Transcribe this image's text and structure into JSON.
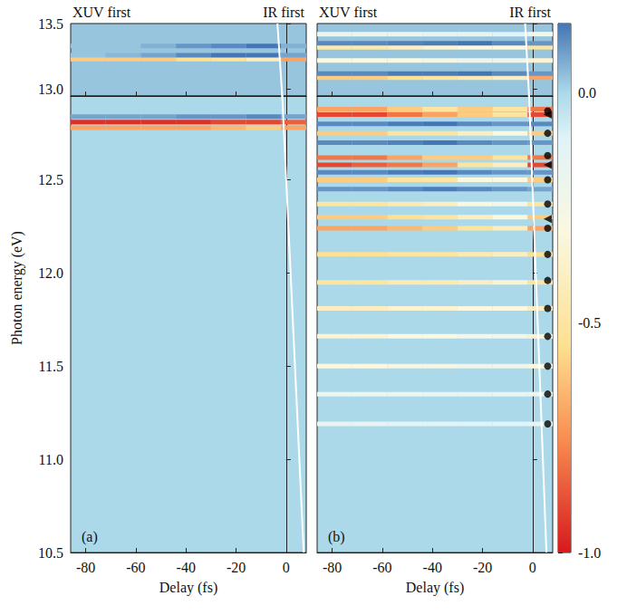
{
  "chart_data": {
    "type": "heatmap",
    "ylabel": "Photon energy (eV)",
    "colorbar": {
      "range": [
        -1.0,
        0.15
      ],
      "ticks": [
        {
          "value": 0,
          "label": "0.0"
        },
        {
          "value": -0.5,
          "label": "-0.5"
        },
        {
          "value": -1,
          "label": "-1.0"
        }
      ]
    },
    "panels": [
      {
        "letter": "(a)",
        "top_left": "XUV first",
        "top_right": "IR first",
        "xlabel": "Delay (fs)",
        "xlim": [
          -86,
          8
        ],
        "xticks": [
          -80,
          -60,
          -40,
          -20,
          0
        ],
        "delay_bins": [
          -86,
          -72,
          -58,
          -44,
          -30,
          -16,
          -2,
          8
        ],
        "sections": [
          {
            "ylim": [
              12.95,
              13.5
            ],
            "yticks": [
              {
                "value": 13,
                "label": "13.0"
              },
              {
                "value": 13.5,
                "label": "13.5"
              }
            ],
            "baseline": 0.03,
            "bands": [
              {
                "energy": 13.23,
                "values": [
                  -0.6,
                  -0.6,
                  -0.6,
                  -0.55,
                  -0.5,
                  -0.4,
                  -0.7
                ]
              },
              {
                "energy": 13.26,
                "values": [
                  0.03,
                  0.05,
                  0.08,
                  0.12,
                  0.15,
                  0.15,
                  0.08
                ]
              },
              {
                "energy": 13.33,
                "values": [
                  0.03,
                  0.03,
                  0.06,
                  0.1,
                  0.12,
                  0.15,
                  0.06
                ]
              }
            ]
          },
          {
            "ylim": [
              10.5,
              12.95
            ],
            "yticks": [
              {
                "value": 10.5,
                "label": "10.5"
              },
              {
                "value": 11,
                "label": "11.0"
              },
              {
                "value": 11.5,
                "label": "11.5"
              },
              {
                "value": 12,
                "label": "12.0"
              },
              {
                "value": 12.5,
                "label": "12.5"
              }
            ],
            "baseline": 0.0,
            "bands": [
              {
                "energy": 12.84,
                "values": [
                  0.08,
                  0.08,
                  0.08,
                  0.1,
                  0.1,
                  0.12,
                  0.08
                ]
              },
              {
                "energy": 12.81,
                "values": [
                  -0.95,
                  -0.95,
                  -0.95,
                  -0.95,
                  -0.9,
                  -0.9,
                  -0.85
                ]
              },
              {
                "energy": 12.78,
                "values": [
                  -0.7,
                  -0.7,
                  -0.7,
                  -0.7,
                  -0.65,
                  -0.6,
                  -0.7
                ]
              }
            ]
          }
        ],
        "ir_line": {
          "x": [
            -3.5,
            7
          ],
          "y": [
            13.5,
            10.5
          ]
        }
      },
      {
        "letter": "(b)",
        "top_left": "XUV first",
        "top_right": "IR first",
        "xlabel": "Delay (fs)",
        "xlim": [
          -86,
          8
        ],
        "xticks": [
          -80,
          -60,
          -40,
          -20,
          0
        ],
        "tick_labels": "x",
        "delay_bins": [
          -86,
          -72,
          -58,
          -44,
          -30,
          -16,
          -2,
          8
        ],
        "sections": [
          {
            "ylim": [
              12.95,
              13.5
            ],
            "yticks": [
              {
                "value": 13,
                "label": "13.0"
              },
              {
                "value": 13.5,
                "label": "13.5"
              }
            ],
            "baseline": 0.03,
            "bands": [
              {
                "energy": 13.09,
                "values": [
                  -0.6,
                  -0.6,
                  -0.55,
                  -0.5,
                  -0.45,
                  -0.4,
                  -0.7
                ]
              },
              {
                "energy": 13.12,
                "values": [
                  0.12,
                  0.12,
                  0.14,
                  0.14,
                  0.15,
                  0.12,
                  0.1
                ]
              },
              {
                "energy": 13.22,
                "values": [
                  -0.3,
                  -0.3,
                  -0.3,
                  -0.25,
                  -0.2,
                  -0.2,
                  -0.35
                ]
              },
              {
                "energy": 13.32,
                "values": [
                  -0.45,
                  -0.45,
                  -0.4,
                  -0.35,
                  -0.3,
                  -0.3,
                  -0.5
                ]
              },
              {
                "energy": 13.35,
                "values": [
                  0.12,
                  0.12,
                  0.13,
                  0.14,
                  0.15,
                  0.12,
                  0.1
                ]
              },
              {
                "energy": 13.42,
                "values": [
                  -0.2,
                  -0.2,
                  -0.2,
                  -0.15,
                  -0.15,
                  -0.1,
                  -0.25
                ]
              }
            ]
          },
          {
            "ylim": [
              10.5,
              12.95
            ],
            "yticks": [
              {
                "value": 10.5,
                "label": "10.5"
              },
              {
                "value": 11,
                "label": "11.0"
              },
              {
                "value": 11.5,
                "label": "11.5"
              },
              {
                "value": 12,
                "label": "12.0"
              },
              {
                "value": 12.5,
                "label": "12.5"
              }
            ],
            "baseline": 0.0,
            "bands": [
              {
                "energy": 12.88,
                "values": [
                  -0.7,
                  -0.7,
                  -0.6,
                  -0.5,
                  -0.6,
                  -0.5,
                  -0.8
                ]
              },
              {
                "energy": 12.85,
                "values": [
                  -0.9,
                  -0.9,
                  -0.8,
                  -0.7,
                  -0.6,
                  -0.5,
                  -0.9
                ]
              },
              {
                "energy": 12.8,
                "values": [
                  0.12,
                  0.12,
                  0.14,
                  0.15,
                  0.12,
                  0.1,
                  0.12
                ]
              },
              {
                "energy": 12.75,
                "values": [
                  -0.6,
                  -0.6,
                  -0.5,
                  -0.5,
                  -0.4,
                  -0.3,
                  -0.6
                ]
              },
              {
                "energy": 12.7,
                "values": [
                  0.12,
                  0.12,
                  0.13,
                  0.15,
                  0.12,
                  0.1,
                  0.1
                ]
              },
              {
                "energy": 12.62,
                "values": [
                  -0.8,
                  -0.8,
                  -0.7,
                  -0.6,
                  -0.6,
                  -0.5,
                  -0.8
                ]
              },
              {
                "energy": 12.58,
                "values": [
                  -0.9,
                  -0.85,
                  -0.8,
                  -0.7,
                  -0.5,
                  -0.4,
                  -0.9
                ]
              },
              {
                "energy": 12.54,
                "values": [
                  0.12,
                  0.12,
                  0.14,
                  0.15,
                  0.12,
                  0.1,
                  0.1
                ]
              },
              {
                "energy": 12.5,
                "values": [
                  -0.6,
                  -0.6,
                  -0.5,
                  -0.5,
                  -0.3,
                  -0.3,
                  -0.6
                ]
              },
              {
                "energy": 12.45,
                "values": [
                  0.1,
                  0.1,
                  0.12,
                  0.14,
                  0.12,
                  0.1,
                  0.08
                ]
              },
              {
                "energy": 12.37,
                "values": [
                  -0.5,
                  -0.5,
                  -0.45,
                  -0.4,
                  -0.3,
                  -0.25,
                  -0.5
                ]
              },
              {
                "energy": 12.3,
                "values": [
                  -0.6,
                  -0.6,
                  -0.55,
                  -0.5,
                  -0.4,
                  -0.3,
                  -0.6
                ]
              },
              {
                "energy": 12.24,
                "values": [
                  -0.7,
                  -0.7,
                  -0.65,
                  -0.6,
                  -0.5,
                  -0.4,
                  -0.7
                ]
              },
              {
                "energy": 12.1,
                "values": [
                  -0.55,
                  -0.55,
                  -0.5,
                  -0.5,
                  -0.45,
                  -0.4,
                  -0.55
                ]
              },
              {
                "energy": 11.95,
                "values": [
                  -0.5,
                  -0.5,
                  -0.45,
                  -0.45,
                  -0.4,
                  -0.35,
                  -0.5
                ]
              },
              {
                "energy": 11.81,
                "values": [
                  -0.4,
                  -0.4,
                  -0.35,
                  -0.35,
                  -0.3,
                  -0.3,
                  -0.4
                ]
              },
              {
                "energy": 11.66,
                "values": [
                  -0.35,
                  -0.35,
                  -0.3,
                  -0.3,
                  -0.25,
                  -0.25,
                  -0.35
                ]
              },
              {
                "energy": 11.5,
                "values": [
                  -0.3,
                  -0.3,
                  -0.25,
                  -0.25,
                  -0.2,
                  -0.2,
                  -0.3
                ]
              },
              {
                "energy": 11.35,
                "values": [
                  -0.2,
                  -0.2,
                  -0.2,
                  -0.15,
                  -0.15,
                  -0.15,
                  -0.2
                ]
              },
              {
                "energy": 11.19,
                "values": [
                  -0.15,
                  -0.15,
                  -0.12,
                  -0.12,
                  -0.1,
                  -0.1,
                  -0.15
                ]
              }
            ]
          }
        ],
        "ir_line": {
          "x": [
            -3,
            5.5
          ],
          "y": [
            13.5,
            10.5
          ]
        },
        "markers": [
          {
            "marker": "circle",
            "delay": [
              6,
              6,
              6,
              6,
              6,
              6,
              6,
              6,
              6,
              6,
              6,
              6,
              6
            ],
            "energy": [
              12.87,
              12.75,
              12.63,
              12.5,
              12.37,
              12.24,
              12.1,
              11.96,
              11.81,
              11.66,
              11.5,
              11.35,
              11.19
            ]
          },
          {
            "marker": "triangle",
            "delay": [
              6,
              6,
              6
            ],
            "energy": [
              12.85,
              12.58,
              12.29
            ]
          }
        ]
      }
    ]
  }
}
